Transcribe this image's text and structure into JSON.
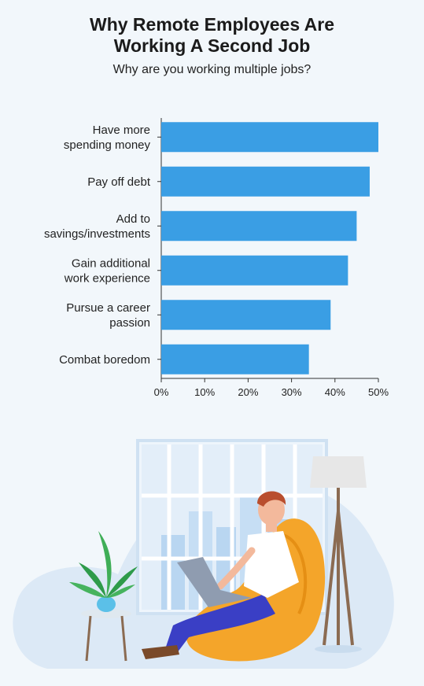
{
  "title_lines": [
    "Why Remote Employees Are",
    "Working A Second Job"
  ],
  "subtitle": "Why are you working multiple jobs?",
  "colors": {
    "bar": "#3a9ee4",
    "axis": "#333333",
    "background": "#f2f7fb"
  },
  "chart_data": {
    "type": "bar",
    "orientation": "horizontal",
    "title": "Why Remote Employees Are Working A Second Job",
    "subtitle": "Why are you working multiple jobs?",
    "categories": [
      [
        "Have more",
        "spending money"
      ],
      [
        "Pay off debt"
      ],
      [
        "Add to",
        "savings/investments"
      ],
      [
        "Gain additional",
        "work experience"
      ],
      [
        "Pursue a career",
        "passion"
      ],
      [
        "Combat boredom"
      ]
    ],
    "values": [
      50,
      48,
      45,
      43,
      39,
      34
    ],
    "xlim": [
      0,
      50
    ],
    "xticks": [
      "0%",
      "10%",
      "20%",
      "30%",
      "40%",
      "50%"
    ],
    "grid": false,
    "legend": "none"
  }
}
